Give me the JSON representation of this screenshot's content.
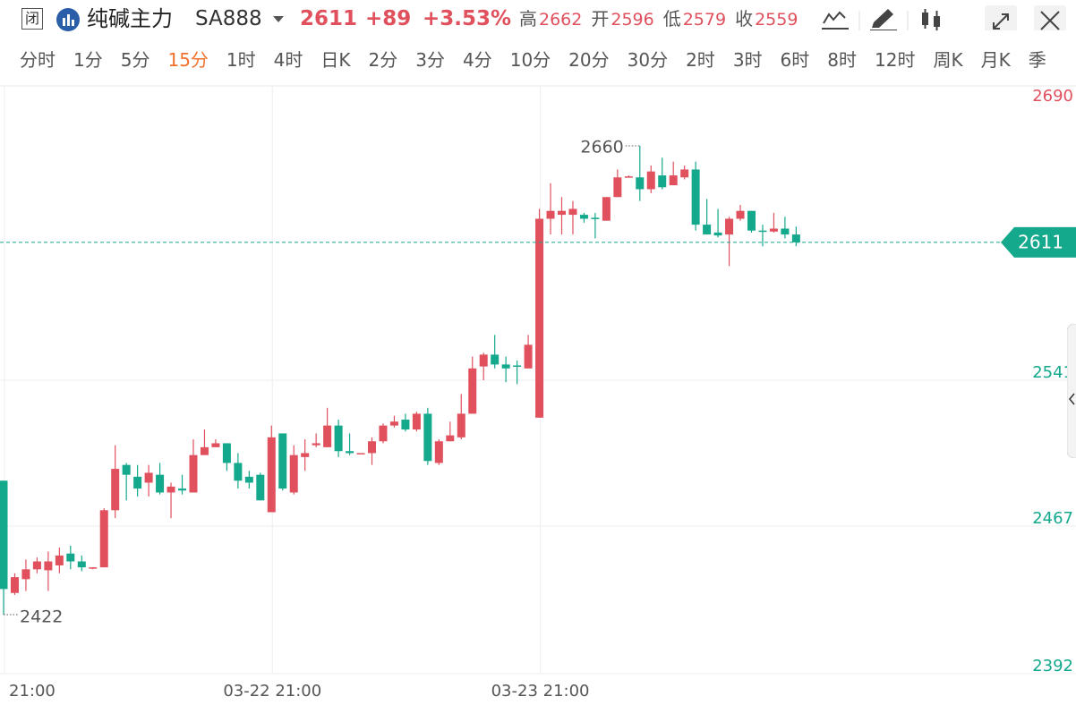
{
  "header": {
    "badge": "闭",
    "name": "纯碱主力",
    "code": "SA888",
    "change": "+89",
    "change_pct": "+3.53%",
    "stats": [
      {
        "label": "高",
        "value": 2662
      },
      {
        "label": "开",
        "value": 2596
      },
      {
        "label": "低",
        "value": 2579
      },
      {
        "label": "收",
        "value": 2559
      }
    ]
  },
  "tabs": {
    "items": [
      "分时",
      "1分",
      "5分",
      "15分",
      "1时",
      "4时",
      "日K",
      "2分",
      "3分",
      "4分",
      "10分",
      "20分",
      "30分",
      "2时",
      "3时",
      "6时",
      "8时",
      "12时",
      "周K",
      "月K",
      "季"
    ],
    "active": 3
  },
  "chart_data": {
    "type": "candlestick",
    "up_color": "#e0505d",
    "down_color": "#14a88c",
    "categories": [
      "21:00",
      null,
      null,
      null,
      null,
      null,
      null,
      null,
      null,
      null,
      null,
      null,
      null,
      null,
      null,
      null,
      null,
      null,
      null,
      null,
      null,
      null,
      null,
      null,
      "03-22 21:00",
      null,
      null,
      null,
      null,
      null,
      null,
      null,
      null,
      null,
      null,
      null,
      null,
      null,
      null,
      null,
      null,
      null,
      null,
      null,
      null,
      null,
      null,
      null,
      "03-23 21:00",
      null,
      null,
      null,
      null,
      null,
      null,
      null,
      null,
      null,
      null,
      null,
      null,
      null,
      null,
      null,
      null,
      null,
      null,
      null,
      null,
      null,
      null,
      null
    ],
    "open": [
      2490,
      2433,
      2440,
      2445,
      2444.5,
      2447,
      2453,
      2449,
      2446,
      2446,
      2475,
      2498,
      2492,
      2489,
      2493,
      2484,
      2486,
      2484,
      2503,
      2507,
      2509,
      2499,
      2492,
      2493,
      2474,
      2514,
      2484,
      2502,
      2508,
      2507,
      2518,
      2505,
      2504,
      2504,
      2510,
      2518,
      2521,
      2516,
      2524,
      2499,
      2510,
      2512,
      2524,
      2548,
      2554,
      2549,
      2548.5,
      2547,
      2522,
      2623,
      2625,
      2625,
      2625,
      2623.5,
      2622,
      2634,
      2644,
      2644,
      2638,
      2645,
      2640,
      2644,
      2648,
      2620,
      2616,
      2615,
      2623,
      2627,
      2617,
      2616.5,
      2618,
      2615
    ],
    "high": [
      2490,
      2443,
      2450,
      2451,
      2454,
      2456,
      2457,
      2452,
      2446,
      2476,
      2508,
      2499,
      2498,
      2498,
      2499,
      2489,
      2493,
      2511,
      2516,
      2511,
      2509,
      2504,
      2495,
      2494,
      2518,
      2514,
      2508,
      2511,
      2514,
      2527,
      2521,
      2514,
      2504,
      2512,
      2519,
      2523,
      2524,
      2525,
      2527,
      2511,
      2520,
      2534,
      2553,
      2555,
      2564,
      2553,
      2551,
      2564,
      2628,
      2641,
      2634,
      2632,
      2626,
      2626,
      2634,
      2648,
      2645,
      2660,
      2650,
      2654,
      2652,
      2650,
      2652,
      2633,
      2628,
      2624,
      2630,
      2627,
      2620,
      2626,
      2624,
      2619
    ],
    "low": [
      2422,
      2432,
      2434,
      2443,
      2434,
      2443,
      2445,
      2444,
      2445,
      2446,
      2471,
      2480,
      2482,
      2482,
      2483,
      2471,
      2483,
      2484,
      2503,
      2507,
      2495,
      2486,
      2486,
      2480,
      2474,
      2485,
      2483,
      2495,
      2507,
      2507,
      2502,
      2503,
      2504,
      2498,
      2509,
      2517,
      2515,
      2515,
      2498,
      2498,
      2510,
      2511,
      2524,
      2541,
      2547,
      2540,
      2539,
      2547,
      2522,
      2615,
      2615,
      2615,
      2621,
      2613,
      2622,
      2634,
      2644,
      2632,
      2636,
      2638,
      2640,
      2643,
      2617,
      2615,
      2613.5,
      2599,
      2622,
      2616,
      2609,
      2616,
      2613,
      2609
    ],
    "close": [
      2435,
      2441,
      2445,
      2449,
      2449,
      2452,
      2449,
      2446,
      2446,
      2475,
      2496,
      2493,
      2486,
      2494,
      2484,
      2487,
      2485,
      2503,
      2507,
      2509,
      2499,
      2490,
      2489,
      2480,
      2512,
      2486,
      2503,
      2504,
      2509,
      2518,
      2505,
      2504,
      2504,
      2510,
      2518,
      2520,
      2516,
      2524,
      2500,
      2510,
      2513,
      2524,
      2547,
      2554,
      2549,
      2547,
      2548,
      2559,
      2623,
      2627,
      2627,
      2628,
      2623,
      2623,
      2634,
      2644,
      2644.5,
      2638,
      2647,
      2639,
      2645,
      2648,
      2620,
      2615,
      2614.5,
      2623,
      2627,
      2617,
      2616.5,
      2618,
      2615,
      2611
    ],
    "ylim": [
      2392,
      2690
    ],
    "yticks": [
      2392,
      2467,
      2541,
      2690
    ],
    "grid": true,
    "last_price": 2611,
    "high_annotation_index": 57,
    "low_annotation_index": 0
  }
}
